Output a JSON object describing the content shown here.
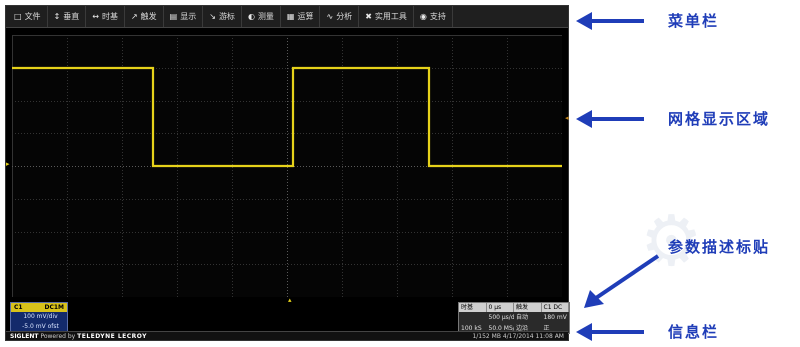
{
  "menu": {
    "items": [
      {
        "icon": "folder-icon",
        "glyph": "□",
        "label": "文件"
      },
      {
        "icon": "vertical-icon",
        "glyph": "↕",
        "label": "垂直"
      },
      {
        "icon": "horizontal-icon",
        "glyph": "↔",
        "label": "时基"
      },
      {
        "icon": "trigger-icon",
        "glyph": "↗",
        "label": "触发"
      },
      {
        "icon": "display-icon",
        "glyph": "▤",
        "label": "显示"
      },
      {
        "icon": "cursor-icon",
        "glyph": "↘",
        "label": "游标"
      },
      {
        "icon": "measure-icon",
        "glyph": "◐",
        "label": "测量"
      },
      {
        "icon": "math-icon",
        "glyph": "▦",
        "label": "运算"
      },
      {
        "icon": "analysis-icon",
        "glyph": "∿",
        "label": "分析"
      },
      {
        "icon": "utilities-icon",
        "glyph": "✖",
        "label": "实用工具"
      },
      {
        "icon": "support-icon",
        "glyph": "◉",
        "label": "支持"
      }
    ]
  },
  "channel": {
    "name": "C1",
    "coupling": "DC1M",
    "vdiv": "100 mV/div",
    "offset": "-5.0 mV ofst"
  },
  "timebase": {
    "header": [
      "时基",
      "0 μs",
      "触发",
      "C1 DC"
    ],
    "row1": [
      "",
      "500 μs/div",
      "自动",
      "180 mV"
    ],
    "row2": [
      "100 kS",
      "50.0 MS/s",
      "边沿",
      "正"
    ]
  },
  "infobar": {
    "brand": "SIGLENT",
    "powered": "Powered by",
    "partner": "TELEDYNE LECROY",
    "status": "1/152 MB  4/17/2014  11:08 AM"
  },
  "callouts": {
    "menubar": "菜单栏",
    "grid": "网格显示区域",
    "param": "参数描述标贴",
    "info": "信息栏"
  },
  "colors": {
    "trace": "#e6d21a",
    "callout": "#1f3db8"
  }
}
